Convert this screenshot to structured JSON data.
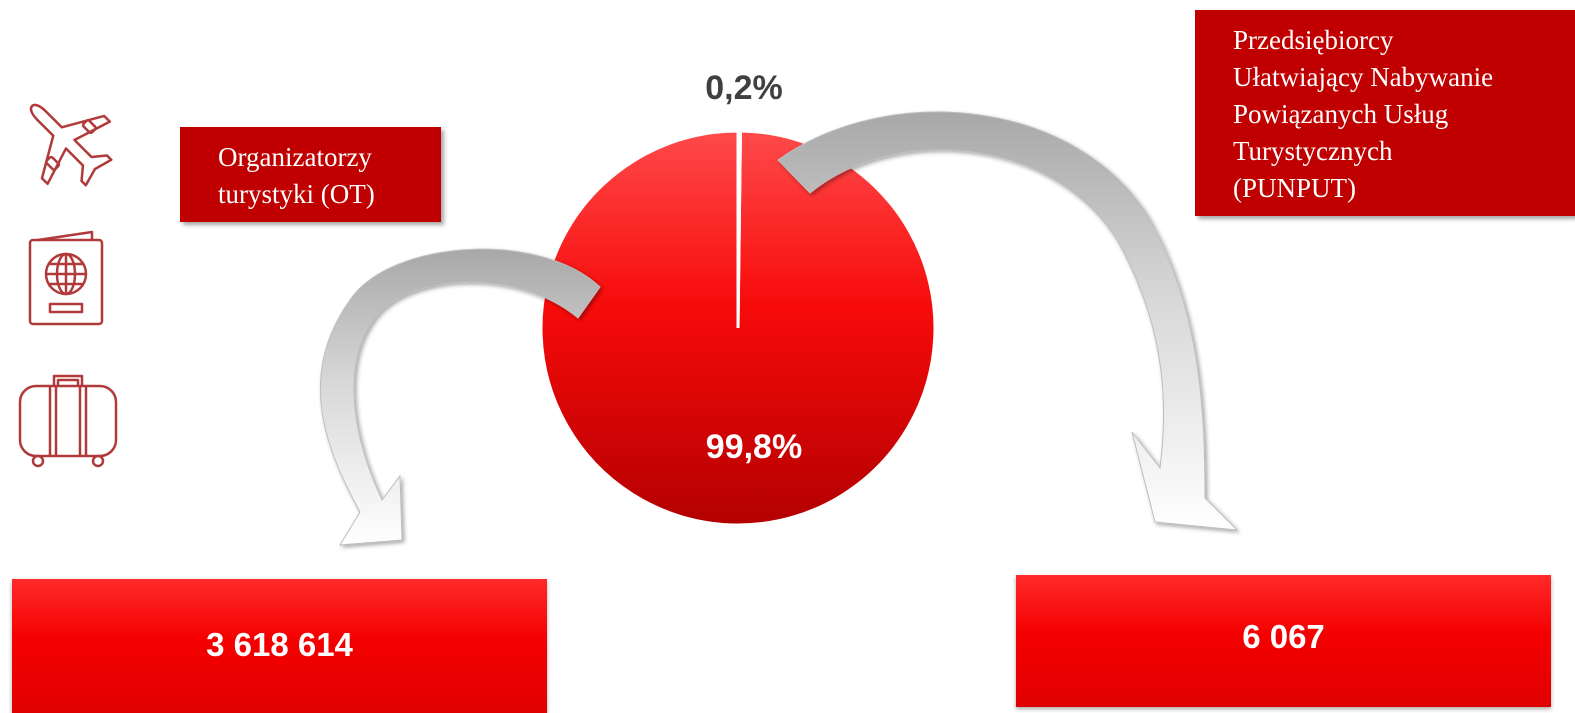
{
  "colors": {
    "primary_red": "#c00000",
    "bright_red": "#ff0000",
    "icon_red": "#b03a3a",
    "dark_text": "#404040"
  },
  "icons": [
    "airplane-icon",
    "passport-icon",
    "suitcase-icon"
  ],
  "labels": {
    "ot": [
      "Organizatorzy",
      "turystyki (OT)"
    ],
    "punput": [
      "Przedsiębiorcy",
      "Ułatwiający Nabywanie",
      "Powiązanych Usług",
      "Turystycznych",
      "(PUNPUT)"
    ]
  },
  "values": {
    "ot": "3 618 614",
    "punput": "6 067"
  },
  "chart_data": {
    "type": "pie",
    "categories": [
      "Organizatorzy turystyki (OT)",
      "Przedsiębiorcy Ułatwiający Nabywanie Powiązanych Usług Turystycznych (PUNPUT)"
    ],
    "values": [
      99.8,
      0.2
    ],
    "data_labels": [
      "99,8%",
      "0,2%"
    ],
    "legend": "none"
  }
}
